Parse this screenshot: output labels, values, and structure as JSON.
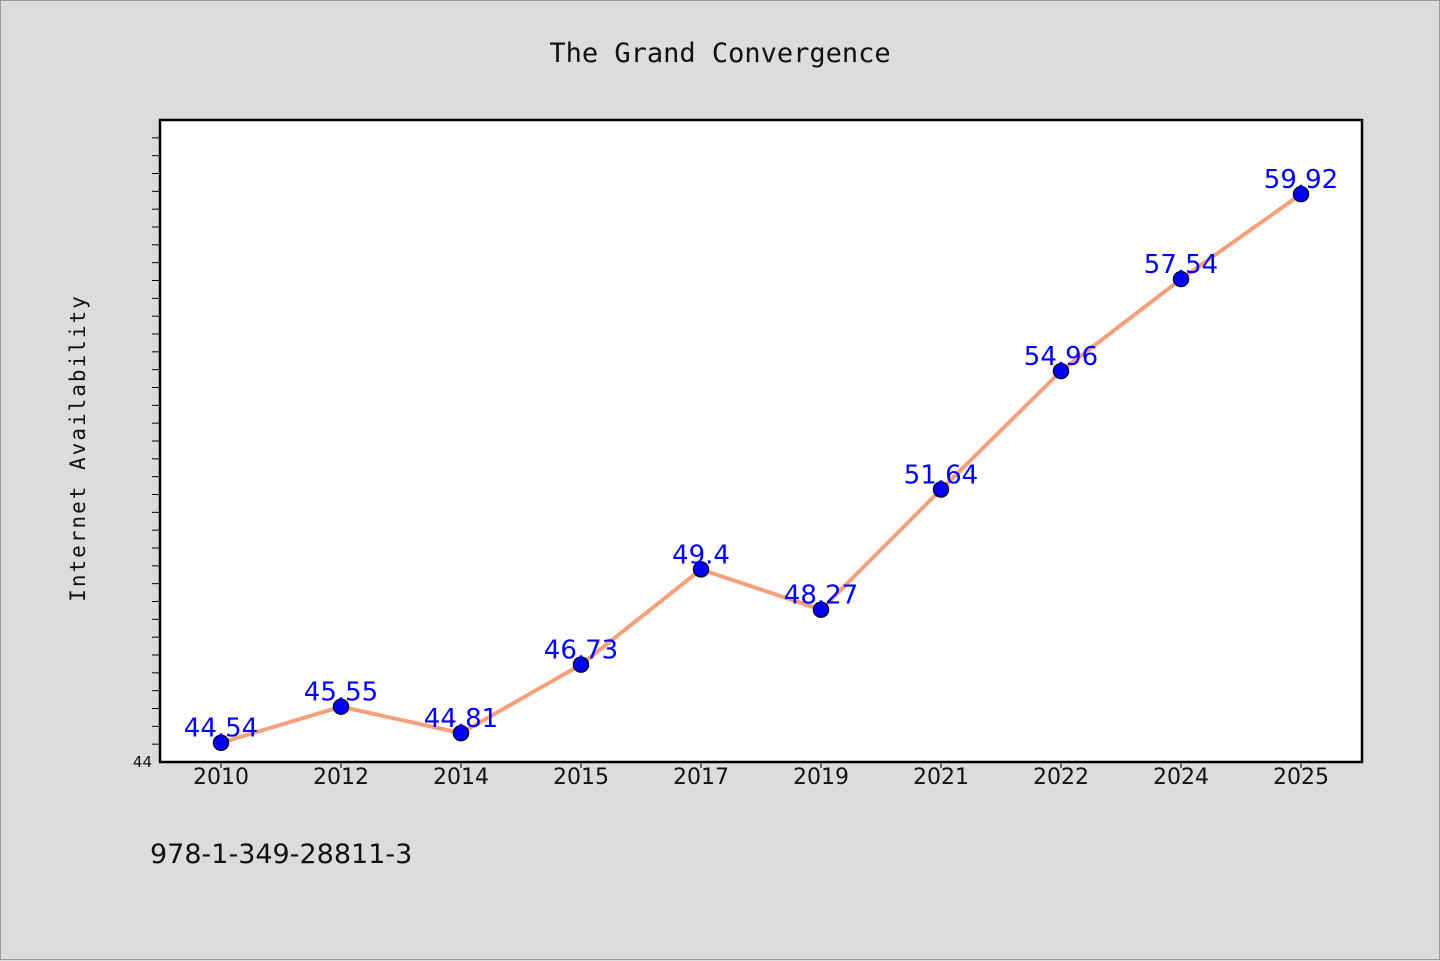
{
  "chart_data": {
    "type": "line",
    "title": "The Grand Convergence",
    "xlabel": "",
    "ylabel": "Internet Availability",
    "categories": [
      "2010",
      "2012",
      "2014",
      "2015",
      "2017",
      "2019",
      "2021",
      "2022",
      "2024",
      "2025"
    ],
    "values": [
      44.54,
      45.55,
      44.81,
      46.73,
      49.4,
      48.27,
      51.64,
      54.96,
      57.54,
      59.92
    ],
    "data_labels": [
      "44.54",
      "45.55",
      "44.81",
      "46.73",
      "49.4",
      "48.27",
      "51.64",
      "54.96",
      "57.54",
      "59.92"
    ],
    "ylim": [
      44,
      62
    ],
    "y_tick_labels": [
      "44"
    ],
    "grid": false,
    "legend": "none",
    "colors": {
      "line": "#f4a07a",
      "marker_fill": "#0000ff",
      "marker_edge": "#000033",
      "data_label": "#0000ff",
      "plot_background": "#ffffff",
      "figure_background": "#dcdcdc"
    }
  },
  "footer": {
    "text": "978-1-349-28811-3"
  }
}
